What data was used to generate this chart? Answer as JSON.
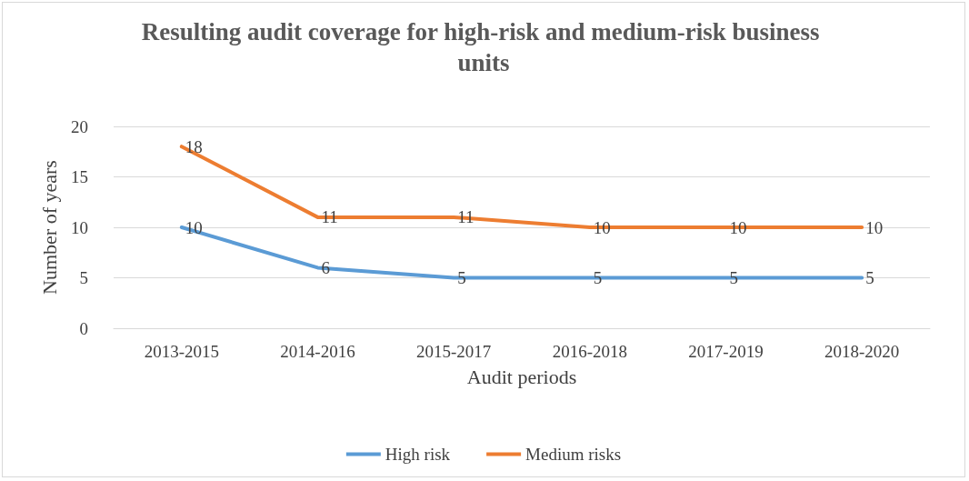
{
  "chart_data": {
    "type": "line",
    "title": "Resulting audit coverage for high-risk and medium-risk business units",
    "xlabel": "Audit periods",
    "ylabel": "Number of years",
    "categories": [
      "2013-2015",
      "2014-2016",
      "2015-2017",
      "2016-2018",
      "2017-2019",
      "2018-2020"
    ],
    "series": [
      {
        "name": "High risk",
        "color": "#5b9bd5",
        "values": [
          10,
          6,
          5,
          5,
          5,
          5
        ]
      },
      {
        "name": "Medium risks",
        "color": "#ed7d31",
        "values": [
          18,
          11,
          11,
          10,
          10,
          10
        ]
      }
    ],
    "ylim": [
      0,
      20
    ],
    "yticks": [
      0,
      5,
      10,
      15,
      20
    ],
    "grid": "y",
    "legend": "bottom",
    "data_labels": true,
    "marker": "none",
    "line_style": "solid"
  }
}
